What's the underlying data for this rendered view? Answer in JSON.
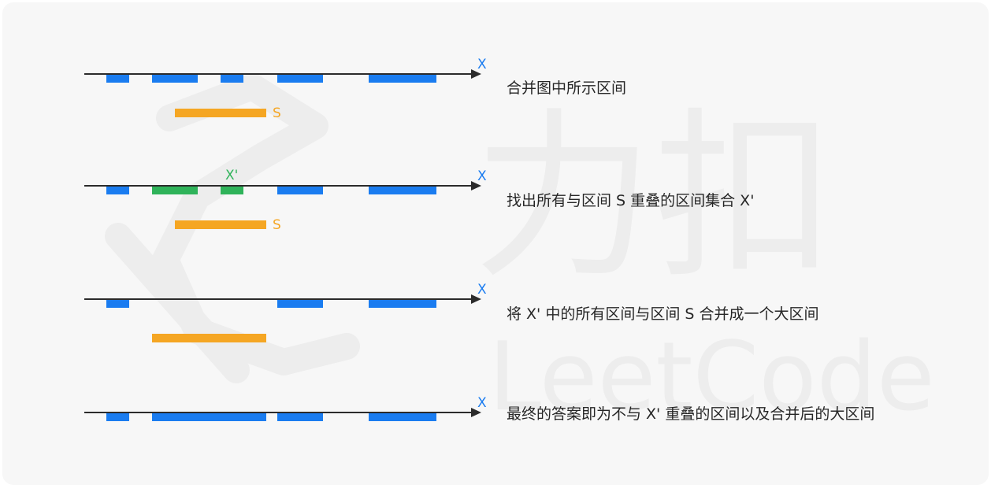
{
  "colors": {
    "axis": "#2b2b2b",
    "interval": "#1a7cf0",
    "overlap": "#2fb35a",
    "new_interval": "#f5a623",
    "axis_label": "#1a7cf0",
    "background": "#f7f7f7",
    "watermark": "#ececec"
  },
  "watermark_text": "力扣 LeetCode",
  "axis_label": "X",
  "new_interval_label": "S",
  "overlap_label": "X'",
  "steps": [
    {
      "caption": "合并图中所示区间"
    },
    {
      "caption": "找出所有与区间 S 重叠的区间集合 X'"
    },
    {
      "caption": "将 X' 中的所有区间与区间 S 合并成一个大区间"
    },
    {
      "caption": "最终的答案即为不与 X' 重叠的区间以及合并后的大区间"
    }
  ]
}
